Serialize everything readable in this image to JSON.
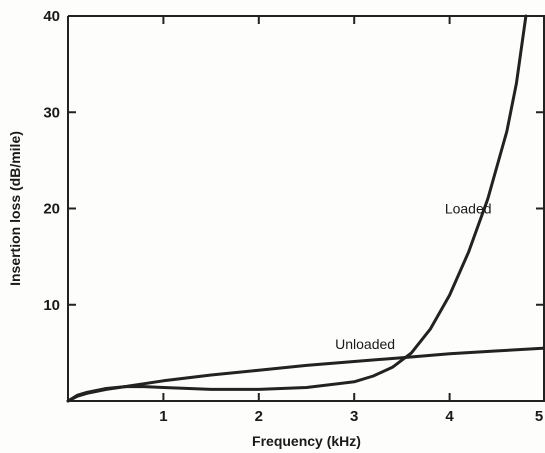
{
  "chart_data": {
    "type": "line",
    "xlabel": "Frequency (kHz)",
    "ylabel": "Insertion loss (dB/mile)",
    "xlim": [
      0,
      5
    ],
    "ylim": [
      0,
      40
    ],
    "x_ticks": [
      "1",
      "2",
      "3",
      "4",
      "5"
    ],
    "y_ticks": [
      "10",
      "20",
      "30",
      "40"
    ],
    "x_tick_values": [
      1,
      2,
      3,
      4,
      5
    ],
    "y_tick_values": [
      10,
      20,
      30,
      40
    ],
    "grid": false,
    "line_color": "#222222",
    "series": [
      {
        "name": "Unloaded",
        "x": [
          0.0,
          0.1,
          0.2,
          0.4,
          0.6,
          0.8,
          1.0,
          1.5,
          2.0,
          2.5,
          3.0,
          3.5,
          4.0,
          4.5,
          5.0
        ],
        "y": [
          0.0,
          0.5,
          0.8,
          1.2,
          1.5,
          1.8,
          2.1,
          2.7,
          3.2,
          3.7,
          4.1,
          4.5,
          4.9,
          5.2,
          5.5
        ]
      },
      {
        "name": "Loaded",
        "x": [
          0.0,
          0.1,
          0.2,
          0.4,
          0.6,
          0.8,
          1.0,
          1.5,
          2.0,
          2.5,
          3.0,
          3.2,
          3.4,
          3.6,
          3.8,
          4.0,
          4.2,
          4.4,
          4.6,
          4.7,
          4.8
        ],
        "y": [
          0.0,
          0.6,
          0.9,
          1.3,
          1.5,
          1.5,
          1.4,
          1.2,
          1.2,
          1.4,
          2.0,
          2.6,
          3.5,
          5.0,
          7.5,
          11.0,
          15.5,
          21.0,
          28.0,
          33.0,
          40.0
        ]
      }
    ]
  }
}
